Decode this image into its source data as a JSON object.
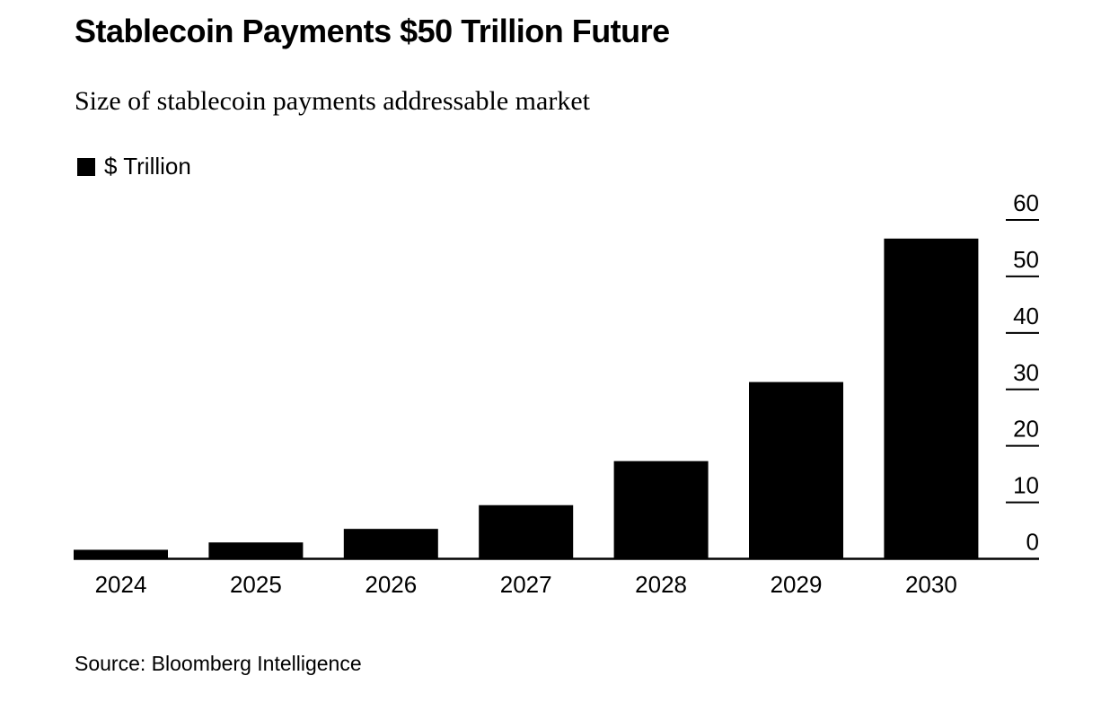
{
  "chart_data": {
    "type": "bar",
    "title": "Stablecoin Payments $50 Trillion Future",
    "subtitle": "Size of stablecoin payments addressable market",
    "categories": [
      "2024",
      "2025",
      "2026",
      "2027",
      "2028",
      "2029",
      "2030"
    ],
    "series": [
      {
        "name": "$ Trillion",
        "values": [
          1.6,
          2.9,
          5.3,
          9.5,
          17.3,
          31.3,
          56.7
        ],
        "color": "#000000"
      }
    ],
    "ylim": [
      0,
      60
    ],
    "yticks": [
      0,
      10,
      20,
      30,
      40,
      50,
      60
    ],
    "y_axis_side": "right",
    "grid": false,
    "legend_placement": "top-left",
    "source": "Source: Bloomberg Intelligence"
  }
}
